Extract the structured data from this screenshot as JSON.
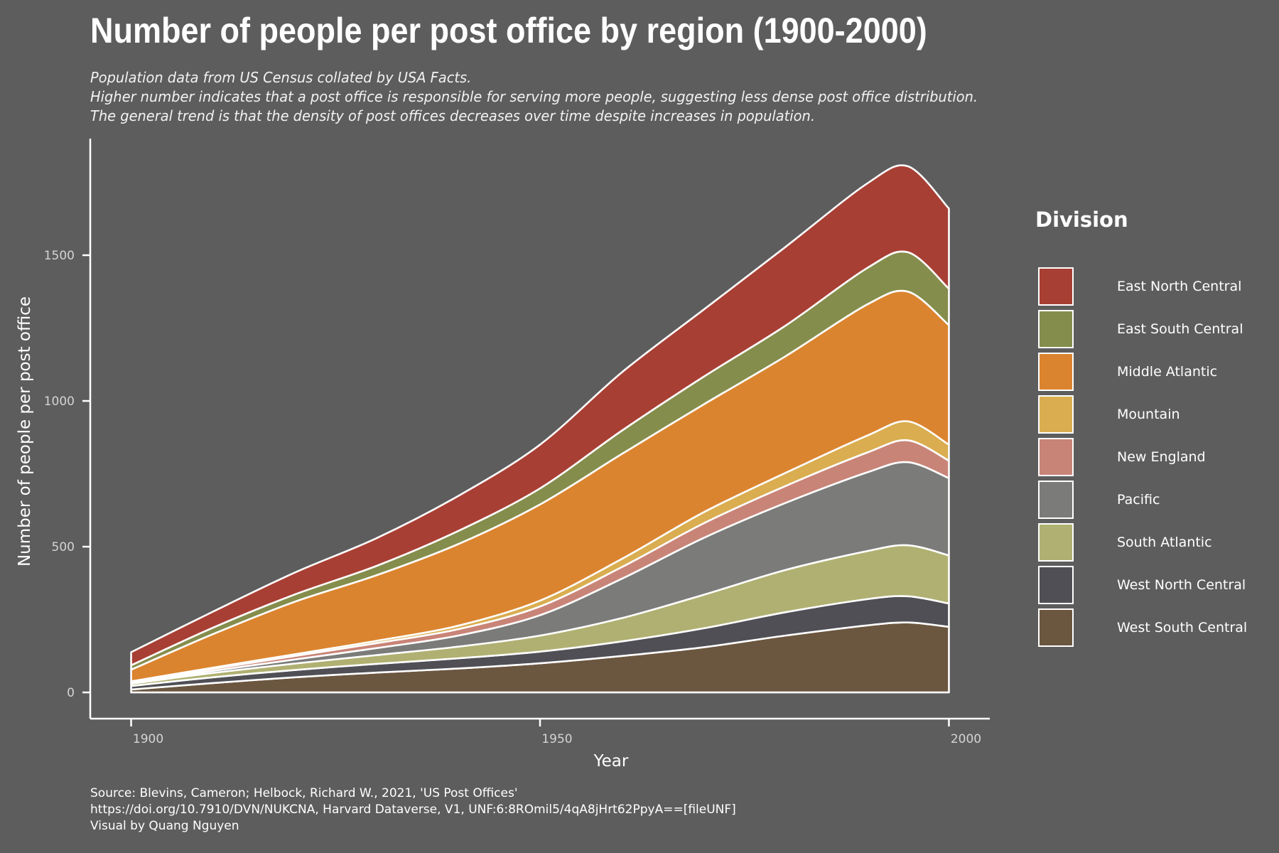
{
  "header": {
    "title": "Number of people per post office by region (1900-2000)",
    "subtitle_lines": [
      "Population data from US Census collated by USA Facts.",
      "Higher number indicates that a post office is responsible for serving more people, suggesting less dense post office distribution.",
      "The general trend is that the density of post offices decreases over time despite increases in population."
    ]
  },
  "caption_lines": [
    "Source: Blevins, Cameron; Helbock, Richard W., 2021, 'US Post Offices'",
    "https://doi.org/10.7910/DVN/NUKCNA, Harvard Dataverse, V1, UNF:6:8ROmil5/4qA8jHrt62PpyA==[fileUNF]",
    "Visual by Quang Nguyen"
  ],
  "colors": {
    "background": "#5d5d5d",
    "outline": "#ffffff",
    "tick_text": "#d4d4d4"
  },
  "chart_data": {
    "type": "area",
    "stacked": true,
    "title": "Number of people per post office by region (1900-2000)",
    "xlabel": "Year",
    "ylabel": "Number of people per post office",
    "xlim": [
      1895,
      2005
    ],
    "ylim": [
      -90,
      1900
    ],
    "x_ticks": [
      1900,
      1950,
      2000
    ],
    "y_ticks": [
      0,
      500,
      1000,
      1500
    ],
    "grid": false,
    "legend_title": "Division",
    "legend_position": "right",
    "x": [
      1900,
      1910,
      1920,
      1930,
      1940,
      1950,
      1960,
      1970,
      1980,
      1990,
      1995,
      2000
    ],
    "series": [
      {
        "name": "West South Central",
        "color": "#6b5640",
        "values": [
          10,
          32,
          52,
          68,
          82,
          100,
          125,
          155,
          195,
          230,
          240,
          225
        ]
      },
      {
        "name": "West North Central",
        "color": "#4f4f55",
        "values": [
          12,
          20,
          25,
          30,
          35,
          40,
          50,
          65,
          80,
          90,
          90,
          80
        ]
      },
      {
        "name": "South Atlantic",
        "color": "#b0b072",
        "values": [
          8,
          15,
          22,
          30,
          40,
          55,
          80,
          115,
          145,
          165,
          175,
          165
        ]
      },
      {
        "name": "Pacific",
        "color": "#7b7c7a",
        "values": [
          3,
          7,
          14,
          24,
          38,
          70,
          135,
          195,
          230,
          270,
          285,
          265
        ]
      },
      {
        "name": "New England",
        "color": "#c98478",
        "values": [
          3,
          7,
          12,
          17,
          22,
          30,
          40,
          50,
          58,
          68,
          75,
          60
        ]
      },
      {
        "name": "Mountain",
        "color": "#d9ad50",
        "values": [
          2,
          4,
          6,
          8,
          12,
          20,
          28,
          38,
          45,
          58,
          65,
          55
        ]
      },
      {
        "name": "Middle Atlantic",
        "color": "#db842f",
        "values": [
          40,
          115,
          180,
          225,
          280,
          330,
          360,
          370,
          400,
          450,
          445,
          410
        ]
      },
      {
        "name": "East South Central",
        "color": "#858d4c",
        "values": [
          15,
          22,
          25,
          32,
          45,
          55,
          80,
          95,
          105,
          125,
          135,
          125
        ]
      },
      {
        "name": "East North Central",
        "color": "#a83f34",
        "values": [
          45,
          55,
          75,
          95,
          120,
          150,
          200,
          230,
          270,
          290,
          295,
          275
        ]
      }
    ]
  }
}
